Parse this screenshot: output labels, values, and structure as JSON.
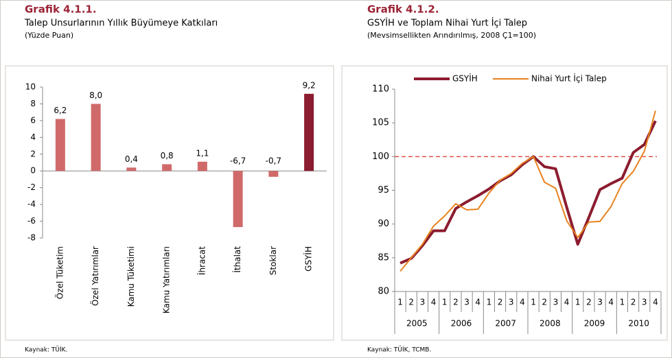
{
  "chart_data": [
    {
      "type": "bar",
      "title": "Grafik 4.1.1.",
      "subtitle": "Talep Unsurlarının Yıllık Büyümeye Katkıları",
      "unit_note": "(Yüzde Puan)",
      "source": "Kaynak: TÜİK.",
      "categories": [
        "Özel Tüketim",
        "Özel Yatırımlar",
        "Kamu Tüketimi",
        "Kamu Yatırımları",
        "İhracat",
        "İthalat",
        "Stoklar",
        "GSYİH"
      ],
      "values": [
        6.2,
        8.0,
        0.4,
        0.8,
        1.1,
        -6.7,
        -0.7,
        9.2
      ],
      "value_labels": [
        "6,2",
        "8,0",
        "0,4",
        "0,8",
        "1,1",
        "-6,7",
        "-0,7",
        "9,2"
      ],
      "colors": [
        "#d06a6a",
        "#d06a6a",
        "#d06a6a",
        "#d06a6a",
        "#d06a6a",
        "#d06a6a",
        "#d06a6a",
        "#8c1c2f"
      ],
      "ylim": [
        -8,
        10
      ],
      "yticks": [
        -8,
        -6,
        -4,
        -2,
        0,
        2,
        4,
        6,
        8,
        10
      ]
    },
    {
      "type": "line",
      "title": "Grafik 4.1.2.",
      "subtitle": "GSYİH ve Toplam Nihai Yurt İçi Talep",
      "unit_note": "(Mevsimsellikten Arındırılmış, 2008 Ç1=100)",
      "source": "Kaynak: TÜİK, TCMB.",
      "categories": [
        "1",
        "2",
        "3",
        "4",
        "1",
        "2",
        "3",
        "4",
        "1",
        "2",
        "3",
        "4",
        "1",
        "2",
        "3",
        "4",
        "1",
        "2",
        "3",
        "4",
        "1",
        "2",
        "3",
        "4"
      ],
      "year_groups": [
        "2005",
        "2006",
        "2007",
        "2008",
        "2009",
        "2010"
      ],
      "series": [
        {
          "name": "GSYİH",
          "color": "#8c1c2f",
          "values": [
            84.2,
            84.9,
            86.8,
            89.0,
            89.0,
            92.3,
            93.3,
            94.2,
            95.2,
            96.4,
            97.3,
            98.8,
            100.0,
            98.5,
            98.2,
            92.5,
            87.0,
            91.0,
            95.1,
            96.0,
            96.8,
            100.6,
            101.8,
            105.3
          ]
        },
        {
          "name": "Nihai Yurt İçi Talep",
          "color": "#e8821e",
          "values": [
            83.0,
            85.0,
            87.0,
            89.7,
            91.2,
            93.0,
            92.1,
            92.2,
            94.6,
            96.5,
            97.5,
            99.0,
            100.0,
            96.2,
            95.3,
            90.5,
            88.0,
            90.3,
            90.4,
            92.6,
            96.0,
            97.8,
            100.8,
            106.8
          ]
        }
      ],
      "reference_line": 100,
      "reference_color": "#e0504a",
      "ylim": [
        80,
        110
      ],
      "yticks": [
        80,
        85,
        90,
        95,
        100,
        105,
        110
      ]
    }
  ]
}
